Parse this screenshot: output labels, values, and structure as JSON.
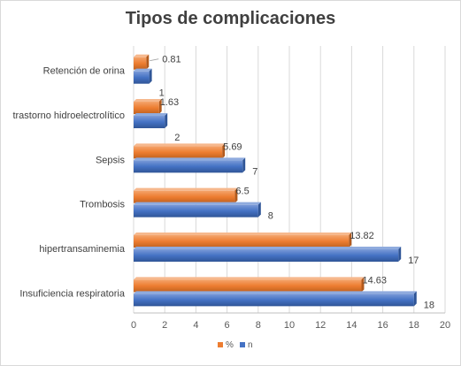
{
  "chart_data": {
    "type": "bar",
    "orientation": "horizontal",
    "title": "Tipos de complicaciones",
    "categories": [
      "Retención de orina",
      "trastorno hidroelectrolítico",
      "Sepsis",
      "Trombosis",
      "hipertransaminemia",
      "Insuficiencia respiratoria"
    ],
    "series": [
      {
        "name": "%",
        "color": "#ed7d31",
        "values": [
          0.81,
          1.63,
          5.69,
          6.5,
          13.82,
          14.63
        ]
      },
      {
        "name": "n",
        "color": "#4472c4",
        "values": [
          1,
          2,
          7,
          8,
          17,
          18
        ]
      }
    ],
    "xlim": [
      0,
      20
    ],
    "xticks": [
      0,
      2,
      4,
      6,
      8,
      10,
      12,
      14,
      16,
      18,
      20
    ],
    "grid": true,
    "legend_position": "bottom"
  }
}
